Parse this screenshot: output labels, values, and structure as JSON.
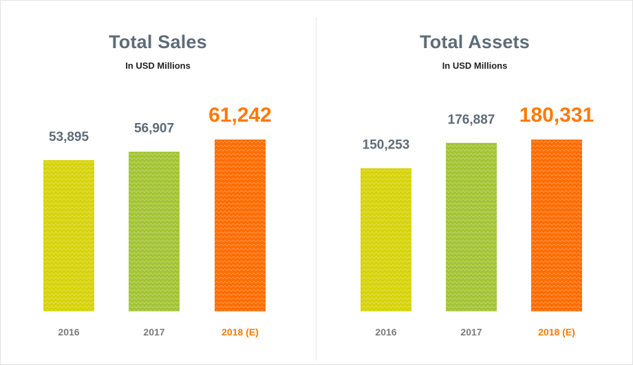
{
  "chart_data": [
    {
      "type": "bar",
      "title": "Total Sales",
      "subtitle": "In USD Millions",
      "categories": [
        "2016",
        "2017",
        "2018 (E)"
      ],
      "values": [
        53895,
        56907,
        61242
      ],
      "value_labels": [
        "53,895",
        "56,907",
        "61,242"
      ],
      "ylim": [
        0,
        61242
      ],
      "grid": false,
      "xlabel": "",
      "ylabel": "",
      "colors": [
        "#d6d30a",
        "#a3c434",
        "#ff6c00"
      ],
      "label_colors": [
        "#5e6c79",
        "#5e6c79",
        "#ff7a00"
      ],
      "highlight_index": 2
    },
    {
      "type": "bar",
      "title": "Total Assets",
      "subtitle": "In USD Millions",
      "categories": [
        "2016",
        "2017",
        "2018 (E)"
      ],
      "values": [
        150253,
        176887,
        180331
      ],
      "value_labels": [
        "150,253",
        "176,887",
        "180,331"
      ],
      "ylim": [
        0,
        180331
      ],
      "grid": false,
      "xlabel": "",
      "ylabel": "",
      "colors": [
        "#d6d30a",
        "#a3c434",
        "#ff6c00"
      ],
      "label_colors": [
        "#5e6c79",
        "#5e6c79",
        "#ff7a00"
      ],
      "highlight_index": 2
    }
  ],
  "colors": {
    "title": "#5e6c79",
    "subtitle": "#222222",
    "category": "#7a7a7a",
    "highlight": "#ff7a00"
  }
}
